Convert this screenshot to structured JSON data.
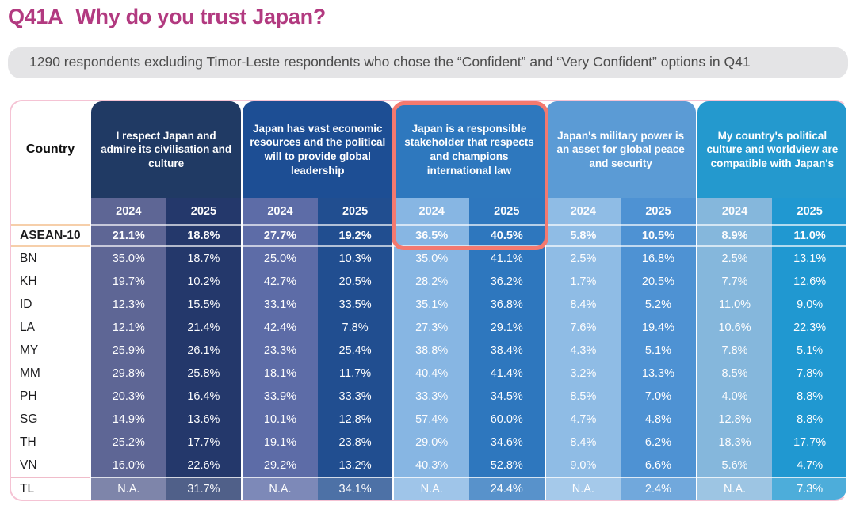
{
  "title": {
    "code": "Q41A",
    "text": "Why do you trust Japan?"
  },
  "subtitle": "1290 respondents excluding Timor-Leste respondents who chose the “Confident” and “Very Confident” options in Q41",
  "style": {
    "accent_magenta": "#b23a80",
    "highlight_border": "#f4796f",
    "groups": [
      {
        "header": "#203a64",
        "y2024": "#5e6695",
        "y2025": "#24386b",
        "tl2024": "#7e85aa",
        "tl2025": "#506089"
      },
      {
        "header": "#1d4e94",
        "y2024": "#5d6ca7",
        "y2025": "#214e90",
        "tl2024": "#7d89b8",
        "tl2025": "#4d71a6"
      },
      {
        "header": "#2e78be",
        "y2024": "#87b6e3",
        "y2025": "#2e77be",
        "tl2024": "#9fc5e9",
        "tl2025": "#5892cb"
      },
      {
        "header": "#5b9bd5",
        "y2024": "#8fbce5",
        "y2025": "#4e92d3",
        "tl2024": "#a5c9ea",
        "tl2025": "#71a8dc"
      },
      {
        "header": "#2499ce",
        "y2024": "#85b7dc",
        "y2025": "#2098d1",
        "tl2024": "#9dc5e3",
        "tl2025": "#4dadda"
      }
    ]
  },
  "chart_data": {
    "type": "table",
    "title": "Q41A Why do you trust Japan?",
    "note": "1290 respondents excluding Timor-Leste respondents who chose the “Confident” and “Very Confident” options in Q41",
    "row_header": "Country",
    "years": [
      "2024",
      "2025"
    ],
    "column_groups": [
      {
        "label": "I respect Japan and admire its civilisation and culture",
        "highlighted": false
      },
      {
        "label": "Japan has vast economic resources and the political will to provide global leadership",
        "highlighted": false
      },
      {
        "label": "Japan is a responsible stakeholder that respects and champions international law",
        "highlighted": true
      },
      {
        "label": "Japan's military power is an asset for global peace and security",
        "highlighted": false
      },
      {
        "label": "My country's political culture and worldview are compatible with Japan's",
        "highlighted": false
      }
    ],
    "rows": [
      {
        "country": "ASEAN-10",
        "emphasis": true,
        "values": [
          "21.1%",
          "18.8%",
          "27.7%",
          "19.2%",
          "36.5%",
          "40.5%",
          "5.8%",
          "10.5%",
          "8.9%",
          "11.0%"
        ]
      },
      {
        "country": "BN",
        "values": [
          "35.0%",
          "18.7%",
          "25.0%",
          "10.3%",
          "35.0%",
          "41.1%",
          "2.5%",
          "16.8%",
          "2.5%",
          "13.1%"
        ]
      },
      {
        "country": "KH",
        "values": [
          "19.7%",
          "10.2%",
          "42.7%",
          "20.5%",
          "28.2%",
          "36.2%",
          "1.7%",
          "20.5%",
          "7.7%",
          "12.6%"
        ]
      },
      {
        "country": "ID",
        "values": [
          "12.3%",
          "15.5%",
          "33.1%",
          "33.5%",
          "35.1%",
          "36.8%",
          "8.4%",
          "5.2%",
          "11.0%",
          "9.0%"
        ]
      },
      {
        "country": "LA",
        "values": [
          "12.1%",
          "21.4%",
          "42.4%",
          "7.8%",
          "27.3%",
          "29.1%",
          "7.6%",
          "19.4%",
          "10.6%",
          "22.3%"
        ]
      },
      {
        "country": "MY",
        "values": [
          "25.9%",
          "26.1%",
          "23.3%",
          "25.4%",
          "38.8%",
          "38.4%",
          "4.3%",
          "5.1%",
          "7.8%",
          "5.1%"
        ]
      },
      {
        "country": "MM",
        "values": [
          "29.8%",
          "25.8%",
          "18.1%",
          "11.7%",
          "40.4%",
          "41.4%",
          "3.2%",
          "13.3%",
          "8.5%",
          "7.8%"
        ]
      },
      {
        "country": "PH",
        "values": [
          "20.3%",
          "16.4%",
          "33.9%",
          "33.3%",
          "33.3%",
          "34.5%",
          "8.5%",
          "7.0%",
          "4.0%",
          "8.8%"
        ]
      },
      {
        "country": "SG",
        "values": [
          "14.9%",
          "13.6%",
          "10.1%",
          "12.8%",
          "57.4%",
          "60.0%",
          "4.7%",
          "4.8%",
          "12.8%",
          "8.8%"
        ]
      },
      {
        "country": "TH",
        "values": [
          "25.2%",
          "17.7%",
          "19.1%",
          "23.8%",
          "29.0%",
          "34.6%",
          "8.4%",
          "6.2%",
          "18.3%",
          "17.7%"
        ]
      },
      {
        "country": "VN",
        "values": [
          "16.0%",
          "22.6%",
          "29.2%",
          "13.2%",
          "40.3%",
          "52.8%",
          "9.0%",
          "6.6%",
          "5.6%",
          "4.7%"
        ]
      },
      {
        "country": "TL",
        "muted": true,
        "values": [
          "N.A.",
          "31.7%",
          "N.A.",
          "34.1%",
          "N.A.",
          "24.4%",
          "N.A.",
          "2.4%",
          "N.A.",
          "7.3%"
        ]
      }
    ]
  }
}
